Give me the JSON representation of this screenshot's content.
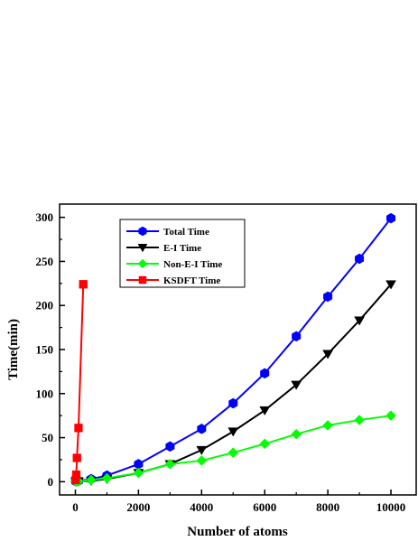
{
  "chart_data": {
    "type": "line",
    "title": "",
    "xlabel": "Number of atoms",
    "ylabel": "Time(min)",
    "xlim": [
      -500,
      10800
    ],
    "ylim": [
      -15,
      315
    ],
    "xticks": [
      0,
      2000,
      4000,
      6000,
      8000,
      10000
    ],
    "yticks": [
      0,
      50,
      100,
      150,
      200,
      250,
      300
    ],
    "grid": false,
    "legend_position": "top-left",
    "series": [
      {
        "name": "Total Time",
        "color": "#0000ff",
        "marker": "hexagon",
        "x": [
          10,
          50,
          100,
          500,
          1000,
          2000,
          3000,
          4000,
          5000,
          6000,
          7000,
          8000,
          9000,
          10000
        ],
        "y": [
          0.5,
          0.6,
          1,
          3,
          7,
          20,
          40,
          60,
          89,
          123,
          165,
          210,
          253,
          299
        ]
      },
      {
        "name": "E-I Time",
        "color": "#000000",
        "marker": "triangle-down",
        "x": [
          10,
          50,
          100,
          500,
          1000,
          2000,
          3000,
          4000,
          5000,
          6000,
          7000,
          8000,
          9000,
          10000
        ],
        "y": [
          0.2,
          0.3,
          0.5,
          1,
          3,
          10,
          20,
          36,
          57,
          81,
          110,
          145,
          183,
          224
        ]
      },
      {
        "name": "Non-E-I Time",
        "color": "#00ff00",
        "marker": "diamond",
        "x": [
          10,
          50,
          100,
          500,
          1000,
          2000,
          3000,
          4000,
          5000,
          6000,
          7000,
          8000,
          9000,
          10000
        ],
        "y": [
          0.3,
          0.4,
          0.5,
          2,
          4,
          10,
          20,
          24,
          33,
          43,
          54,
          64,
          70,
          75
        ]
      },
      {
        "name": "KSDFT Time",
        "color": "#ff0000",
        "marker": "square",
        "x": [
          10,
          30,
          50,
          100,
          250
        ],
        "y": [
          2,
          8,
          27,
          61,
          224
        ]
      }
    ]
  }
}
